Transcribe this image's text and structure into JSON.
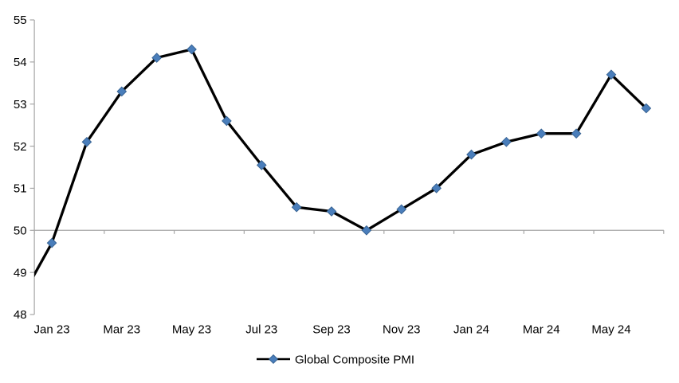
{
  "chart_data": {
    "type": "line",
    "title": "",
    "categories": [
      "Dec 22",
      "Jan 23",
      "Feb 23",
      "Mar 23",
      "Apr 23",
      "May 23",
      "Jun 23",
      "Jul 23",
      "Aug 23",
      "Sep 23",
      "Oct 23",
      "Nov 23",
      "Dec 23",
      "Jan 24",
      "Feb 24",
      "Mar 24",
      "Apr 24",
      "May 24",
      "Jun 24"
    ],
    "series": [
      {
        "name": "Global Composite PMI",
        "values": [
          48.2,
          49.7,
          52.1,
          53.3,
          54.1,
          54.3,
          52.6,
          51.55,
          50.55,
          50.45,
          50.0,
          50.5,
          51.0,
          51.8,
          52.1,
          52.3,
          52.3,
          53.7,
          52.9
        ],
        "line_color": "#000000",
        "marker_shape": "diamond",
        "marker_fill": "#4A7EBB",
        "marker_stroke": "#35608F"
      }
    ],
    "x_axis": {
      "tick_labels": [
        "Jan 23",
        "Mar 23",
        "May 23",
        "Jul 23",
        "Sep 23",
        "Nov 23",
        "Jan 24",
        "Mar 24",
        "May 24"
      ],
      "first_labeled_category_index": 1,
      "label_every": 2,
      "axis_crosses_at_value": 50
    },
    "y_axis": {
      "min": 48,
      "max": 55,
      "tick_interval": 1,
      "ticks": [
        55,
        54,
        53,
        52,
        51,
        50,
        49,
        48
      ]
    },
    "legend": {
      "position": "bottom-center",
      "label": "Global Composite PMI"
    },
    "grid": false,
    "colors": {
      "axis": "#A6A6A6",
      "text": "#000000",
      "background": "#FFFFFF",
      "series_line": "#000000",
      "marker": "#4A7EBB"
    }
  }
}
